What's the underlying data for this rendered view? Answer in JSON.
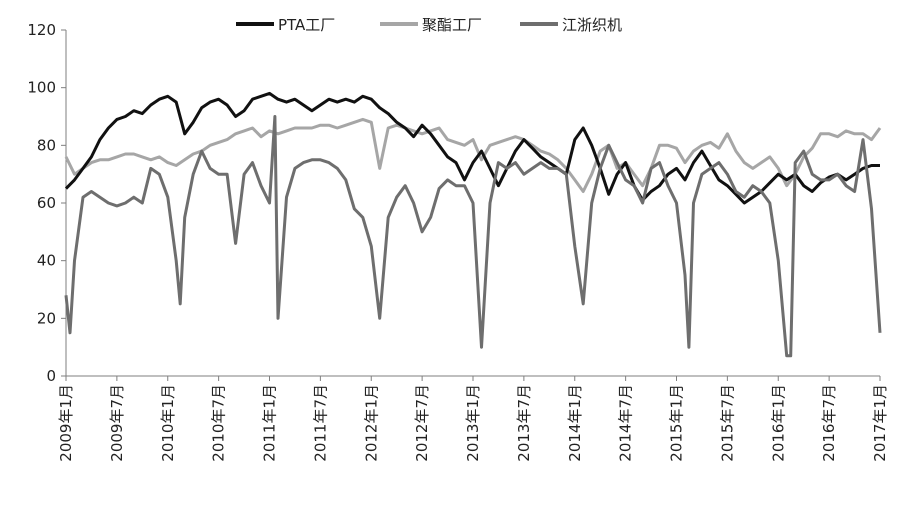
{
  "chart_data": {
    "type": "line",
    "title": "",
    "xlabel": "",
    "ylabel": "",
    "ylim": [
      0,
      120
    ],
    "y_ticks": [
      0,
      20,
      40,
      60,
      80,
      100,
      120
    ],
    "x_range": [
      "2009-01",
      "2017-01"
    ],
    "x_tick_labels": [
      "2009年1月",
      "2009年7月",
      "2010年1月",
      "2010年7月",
      "2011年1月",
      "2011年7月",
      "2012年1月",
      "2012年7月",
      "2013年1月",
      "2013年7月",
      "2014年1月",
      "2014年7月",
      "2015年1月",
      "2015年7月",
      "2016年1月",
      "2016年7月",
      "2017年1月"
    ],
    "grid": "horizontal",
    "legend_position": "top",
    "series": [
      {
        "name": "PTA工厂",
        "color": "#111111",
        "points": [
          [
            "2009-01",
            65
          ],
          [
            "2009-02",
            68
          ],
          [
            "2009-03",
            72
          ],
          [
            "2009-04",
            76
          ],
          [
            "2009-05",
            82
          ],
          [
            "2009-06",
            86
          ],
          [
            "2009-07",
            89
          ],
          [
            "2009-08",
            90
          ],
          [
            "2009-09",
            92
          ],
          [
            "2009-10",
            91
          ],
          [
            "2009-11",
            94
          ],
          [
            "2009-12",
            96
          ],
          [
            "2010-01",
            97
          ],
          [
            "2010-02",
            95
          ],
          [
            "2010-03",
            84
          ],
          [
            "2010-04",
            88
          ],
          [
            "2010-05",
            93
          ],
          [
            "2010-06",
            95
          ],
          [
            "2010-07",
            96
          ],
          [
            "2010-08",
            94
          ],
          [
            "2010-09",
            90
          ],
          [
            "2010-10",
            92
          ],
          [
            "2010-11",
            96
          ],
          [
            "2010-12",
            97
          ],
          [
            "2011-01",
            98
          ],
          [
            "2011-02",
            96
          ],
          [
            "2011-03",
            95
          ],
          [
            "2011-04",
            96
          ],
          [
            "2011-05",
            94
          ],
          [
            "2011-06",
            92
          ],
          [
            "2011-07",
            94
          ],
          [
            "2011-08",
            96
          ],
          [
            "2011-09",
            95
          ],
          [
            "2011-10",
            96
          ],
          [
            "2011-11",
            95
          ],
          [
            "2011-12",
            97
          ],
          [
            "2012-01",
            96
          ],
          [
            "2012-02",
            93
          ],
          [
            "2012-03",
            91
          ],
          [
            "2012-04",
            88
          ],
          [
            "2012-05",
            86
          ],
          [
            "2012-06",
            83
          ],
          [
            "2012-07",
            87
          ],
          [
            "2012-08",
            84
          ],
          [
            "2012-09",
            80
          ],
          [
            "2012-10",
            76
          ],
          [
            "2012-11",
            74
          ],
          [
            "2012-12",
            68
          ],
          [
            "2013-01",
            74
          ],
          [
            "2013-02",
            78
          ],
          [
            "2013-03",
            72
          ],
          [
            "2013-04",
            66
          ],
          [
            "2013-05",
            72
          ],
          [
            "2013-06",
            78
          ],
          [
            "2013-07",
            82
          ],
          [
            "2013-08",
            79
          ],
          [
            "2013-09",
            76
          ],
          [
            "2013-10",
            74
          ],
          [
            "2013-11",
            72
          ],
          [
            "2013-12",
            70
          ],
          [
            "2014-01",
            82
          ],
          [
            "2014-02",
            86
          ],
          [
            "2014-03",
            80
          ],
          [
            "2014-04",
            72
          ],
          [
            "2014-05",
            63
          ],
          [
            "2014-06",
            70
          ],
          [
            "2014-07",
            74
          ],
          [
            "2014-08",
            66
          ],
          [
            "2014-09",
            61
          ],
          [
            "2014-10",
            64
          ],
          [
            "2014-11",
            66
          ],
          [
            "2014-12",
            70
          ],
          [
            "2015-01",
            72
          ],
          [
            "2015-02",
            68
          ],
          [
            "2015-03",
            74
          ],
          [
            "2015-04",
            78
          ],
          [
            "2015-05",
            73
          ],
          [
            "2015-06",
            68
          ],
          [
            "2015-07",
            66
          ],
          [
            "2015-08",
            63
          ],
          [
            "2015-09",
            60
          ],
          [
            "2015-10",
            62
          ],
          [
            "2015-11",
            64
          ],
          [
            "2015-12",
            67
          ],
          [
            "2016-01",
            70
          ],
          [
            "2016-02",
            68
          ],
          [
            "2016-03",
            70
          ],
          [
            "2016-04",
            66
          ],
          [
            "2016-05",
            64
          ],
          [
            "2016-06",
            67
          ],
          [
            "2016-07",
            69
          ],
          [
            "2016-08",
            70
          ],
          [
            "2016-09",
            68
          ],
          [
            "2016-10",
            70
          ],
          [
            "2016-11",
            72
          ],
          [
            "2016-12",
            73
          ],
          [
            "2017-01",
            73
          ]
        ]
      },
      {
        "name": "聚酯工厂",
        "color": "#a6a6a6",
        "points": [
          [
            "2009-01",
            76
          ],
          [
            "2009-02",
            70
          ],
          [
            "2009-03",
            72
          ],
          [
            "2009-04",
            74
          ],
          [
            "2009-05",
            75
          ],
          [
            "2009-06",
            75
          ],
          [
            "2009-07",
            76
          ],
          [
            "2009-08",
            77
          ],
          [
            "2009-09",
            77
          ],
          [
            "2009-10",
            76
          ],
          [
            "2009-11",
            75
          ],
          [
            "2009-12",
            76
          ],
          [
            "2010-01",
            74
          ],
          [
            "2010-02",
            73
          ],
          [
            "2010-03",
            75
          ],
          [
            "2010-04",
            77
          ],
          [
            "2010-05",
            78
          ],
          [
            "2010-06",
            80
          ],
          [
            "2010-07",
            81
          ],
          [
            "2010-08",
            82
          ],
          [
            "2010-09",
            84
          ],
          [
            "2010-10",
            85
          ],
          [
            "2010-11",
            86
          ],
          [
            "2010-12",
            83
          ],
          [
            "2011-01",
            85
          ],
          [
            "2011-02",
            84
          ],
          [
            "2011-03",
            85
          ],
          [
            "2011-04",
            86
          ],
          [
            "2011-05",
            86
          ],
          [
            "2011-06",
            86
          ],
          [
            "2011-07",
            87
          ],
          [
            "2011-08",
            87
          ],
          [
            "2011-09",
            86
          ],
          [
            "2011-10",
            87
          ],
          [
            "2011-11",
            88
          ],
          [
            "2011-12",
            89
          ],
          [
            "2012-01",
            88
          ],
          [
            "2012-02",
            72
          ],
          [
            "2012-03",
            86
          ],
          [
            "2012-04",
            87
          ],
          [
            "2012-05",
            86
          ],
          [
            "2012-06",
            85
          ],
          [
            "2012-07",
            84
          ],
          [
            "2012-08",
            85
          ],
          [
            "2012-09",
            86
          ],
          [
            "2012-10",
            82
          ],
          [
            "2012-11",
            81
          ],
          [
            "2012-12",
            80
          ],
          [
            "2013-01",
            82
          ],
          [
            "2013-02",
            75
          ],
          [
            "2013-03",
            80
          ],
          [
            "2013-04",
            81
          ],
          [
            "2013-05",
            82
          ],
          [
            "2013-06",
            83
          ],
          [
            "2013-07",
            82
          ],
          [
            "2013-08",
            80
          ],
          [
            "2013-09",
            78
          ],
          [
            "2013-10",
            77
          ],
          [
            "2013-11",
            75
          ],
          [
            "2013-12",
            72
          ],
          [
            "2014-01",
            68
          ],
          [
            "2014-02",
            64
          ],
          [
            "2014-03",
            70
          ],
          [
            "2014-04",
            78
          ],
          [
            "2014-05",
            80
          ],
          [
            "2014-06",
            72
          ],
          [
            "2014-07",
            74
          ],
          [
            "2014-08",
            70
          ],
          [
            "2014-09",
            66
          ],
          [
            "2014-10",
            72
          ],
          [
            "2014-11",
            80
          ],
          [
            "2014-12",
            80
          ],
          [
            "2015-01",
            79
          ],
          [
            "2015-02",
            74
          ],
          [
            "2015-03",
            78
          ],
          [
            "2015-04",
            80
          ],
          [
            "2015-05",
            81
          ],
          [
            "2015-06",
            79
          ],
          [
            "2015-07",
            84
          ],
          [
            "2015-08",
            78
          ],
          [
            "2015-09",
            74
          ],
          [
            "2015-10",
            72
          ],
          [
            "2015-11",
            74
          ],
          [
            "2015-12",
            76
          ],
          [
            "2016-01",
            72
          ],
          [
            "2016-02",
            66
          ],
          [
            "2016-03",
            70
          ],
          [
            "2016-04",
            76
          ],
          [
            "2016-05",
            79
          ],
          [
            "2016-06",
            84
          ],
          [
            "2016-07",
            84
          ],
          [
            "2016-08",
            83
          ],
          [
            "2016-09",
            85
          ],
          [
            "2016-10",
            84
          ],
          [
            "2016-11",
            84
          ],
          [
            "2016-12",
            82
          ],
          [
            "2017-01",
            86
          ]
        ]
      },
      {
        "name": "江浙织机",
        "color": "#6e6e6e",
        "points": [
          [
            "2009-01",
            28
          ],
          [
            "2009-01-15",
            15
          ],
          [
            "2009-02",
            40
          ],
          [
            "2009-03",
            62
          ],
          [
            "2009-04",
            64
          ],
          [
            "2009-05",
            62
          ],
          [
            "2009-06",
            60
          ],
          [
            "2009-07",
            59
          ],
          [
            "2009-08",
            60
          ],
          [
            "2009-09",
            62
          ],
          [
            "2009-10",
            60
          ],
          [
            "2009-11",
            72
          ],
          [
            "2009-12",
            70
          ],
          [
            "2010-01",
            62
          ],
          [
            "2010-02",
            40
          ],
          [
            "2010-02-15",
            25
          ],
          [
            "2010-03",
            55
          ],
          [
            "2010-04",
            70
          ],
          [
            "2010-05",
            78
          ],
          [
            "2010-06",
            72
          ],
          [
            "2010-07",
            70
          ],
          [
            "2010-08",
            70
          ],
          [
            "2010-09",
            46
          ],
          [
            "2010-10",
            70
          ],
          [
            "2010-11",
            74
          ],
          [
            "2010-12",
            66
          ],
          [
            "2011-01",
            60
          ],
          [
            "2011-01-20",
            90
          ],
          [
            "2011-02",
            20
          ],
          [
            "2011-03",
            62
          ],
          [
            "2011-04",
            72
          ],
          [
            "2011-05",
            74
          ],
          [
            "2011-06",
            75
          ],
          [
            "2011-07",
            75
          ],
          [
            "2011-08",
            74
          ],
          [
            "2011-09",
            72
          ],
          [
            "2011-10",
            68
          ],
          [
            "2011-11",
            58
          ],
          [
            "2011-12",
            55
          ],
          [
            "2012-01",
            45
          ],
          [
            "2012-02",
            20
          ],
          [
            "2012-03",
            55
          ],
          [
            "2012-04",
            62
          ],
          [
            "2012-05",
            66
          ],
          [
            "2012-06",
            60
          ],
          [
            "2012-07",
            50
          ],
          [
            "2012-08",
            55
          ],
          [
            "2012-09",
            65
          ],
          [
            "2012-10",
            68
          ],
          [
            "2012-11",
            66
          ],
          [
            "2012-12",
            66
          ],
          [
            "2013-01",
            60
          ],
          [
            "2013-02",
            10
          ],
          [
            "2013-03",
            60
          ],
          [
            "2013-04",
            74
          ],
          [
            "2013-05",
            72
          ],
          [
            "2013-06",
            74
          ],
          [
            "2013-07",
            70
          ],
          [
            "2013-08",
            72
          ],
          [
            "2013-09",
            74
          ],
          [
            "2013-10",
            72
          ],
          [
            "2013-11",
            72
          ],
          [
            "2013-12",
            70
          ],
          [
            "2014-01",
            45
          ],
          [
            "2014-02",
            25
          ],
          [
            "2014-03",
            60
          ],
          [
            "2014-04",
            72
          ],
          [
            "2014-05",
            80
          ],
          [
            "2014-06",
            74
          ],
          [
            "2014-07",
            68
          ],
          [
            "2014-08",
            66
          ],
          [
            "2014-09",
            60
          ],
          [
            "2014-10",
            72
          ],
          [
            "2014-11",
            74
          ],
          [
            "2014-12",
            66
          ],
          [
            "2015-01",
            60
          ],
          [
            "2015-02",
            35
          ],
          [
            "2015-02-15",
            10
          ],
          [
            "2015-03",
            60
          ],
          [
            "2015-04",
            70
          ],
          [
            "2015-05",
            72
          ],
          [
            "2015-06",
            74
          ],
          [
            "2015-07",
            70
          ],
          [
            "2015-08",
            64
          ],
          [
            "2015-09",
            62
          ],
          [
            "2015-10",
            66
          ],
          [
            "2015-11",
            64
          ],
          [
            "2015-12",
            60
          ],
          [
            "2016-01",
            40
          ],
          [
            "2016-02",
            7
          ],
          [
            "2016-02-15",
            7
          ],
          [
            "2016-03",
            74
          ],
          [
            "2016-04",
            78
          ],
          [
            "2016-05",
            70
          ],
          [
            "2016-06",
            68
          ],
          [
            "2016-07",
            68
          ],
          [
            "2016-08",
            70
          ],
          [
            "2016-09",
            66
          ],
          [
            "2016-10",
            64
          ],
          [
            "2016-11",
            82
          ],
          [
            "2016-12",
            58
          ],
          [
            "2017-01",
            15
          ]
        ]
      }
    ]
  }
}
